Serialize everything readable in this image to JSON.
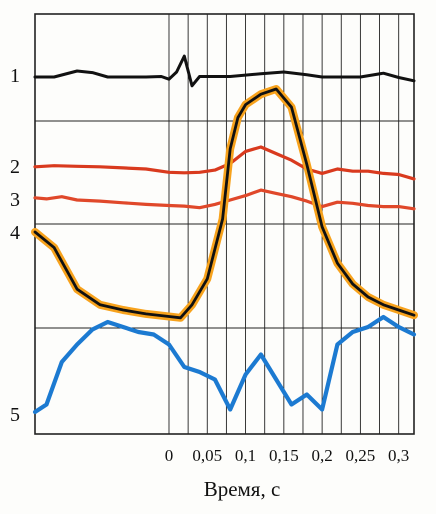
{
  "chart_data": {
    "type": "line",
    "xlabel": "Время, с",
    "xlim": [
      -0.175,
      0.32
    ],
    "x_ticks": [
      0,
      0.05,
      0.1,
      0.15,
      0.2,
      0.25,
      0.3
    ],
    "x_tick_labels": [
      "0",
      "0,05",
      "0,1",
      "0,15",
      "0,2",
      "0,25",
      "0,3"
    ],
    "grid": true,
    "row_labels": [
      "1",
      "2",
      "3",
      "4",
      "5"
    ],
    "colors": {
      "trace_1": "#111111",
      "trace_2": "#d93a1e",
      "trace_3": "#e0482a",
      "trace_4_highlight": "#f7a21c",
      "trace_4": "#111111",
      "trace_5": "#1c7ad1",
      "grid": "#222222"
    },
    "series": [
      {
        "name": "1",
        "x": [
          -0.175,
          -0.15,
          -0.12,
          -0.1,
          -0.08,
          -0.05,
          -0.03,
          -0.01,
          0.0,
          0.01,
          0.02,
          0.03,
          0.04,
          0.05,
          0.08,
          0.12,
          0.15,
          0.18,
          0.2,
          0.22,
          0.25,
          0.28,
          0.3,
          0.32
        ],
        "y": [
          0.0,
          0.0,
          0.55,
          0.4,
          0.0,
          0.0,
          0.0,
          0.05,
          -0.2,
          0.45,
          1.9,
          -0.8,
          0.05,
          0.05,
          0.05,
          0.3,
          0.45,
          0.2,
          0.0,
          0.0,
          0.0,
          0.35,
          -0.05,
          -0.35
        ]
      },
      {
        "name": "2",
        "x": [
          -0.175,
          -0.15,
          -0.12,
          -0.09,
          -0.06,
          -0.03,
          0.0,
          0.02,
          0.04,
          0.06,
          0.08,
          0.1,
          0.12,
          0.14,
          0.16,
          0.18,
          0.2,
          0.22,
          0.24,
          0.26,
          0.28,
          0.3,
          0.32
        ],
        "y": [
          0.2,
          0.3,
          0.25,
          0.2,
          0.1,
          0.0,
          -0.3,
          -0.35,
          -0.3,
          -0.1,
          0.5,
          1.6,
          2.0,
          1.4,
          0.8,
          0.0,
          -0.4,
          0.0,
          -0.2,
          -0.2,
          -0.4,
          -0.5,
          -0.9
        ]
      },
      {
        "name": "3",
        "x": [
          -0.175,
          -0.16,
          -0.14,
          -0.12,
          -0.09,
          -0.06,
          -0.03,
          0.0,
          0.02,
          0.04,
          0.06,
          0.08,
          0.1,
          0.12,
          0.14,
          0.16,
          0.18,
          0.2,
          0.22,
          0.24,
          0.26,
          0.28,
          0.3,
          0.32
        ],
        "y": [
          0.2,
          0.1,
          0.3,
          0.0,
          -0.1,
          -0.25,
          -0.4,
          -0.5,
          -0.55,
          -0.7,
          -0.4,
          0.0,
          0.4,
          0.9,
          0.6,
          0.3,
          -0.1,
          -0.6,
          -0.2,
          -0.3,
          -0.5,
          -0.6,
          -0.6,
          -0.8
        ]
      },
      {
        "name": "4",
        "x": [
          -0.175,
          -0.15,
          -0.12,
          -0.09,
          -0.06,
          -0.03,
          0.0,
          0.015,
          0.03,
          0.05,
          0.07,
          0.08,
          0.09,
          0.1,
          0.12,
          0.14,
          0.16,
          0.18,
          0.2,
          0.22,
          0.24,
          0.26,
          0.28,
          0.3,
          0.32
        ],
        "y": [
          0.0,
          -0.6,
          -2.2,
          -2.8,
          -3.0,
          -3.15,
          -3.25,
          -3.3,
          -2.8,
          -1.8,
          0.5,
          3.2,
          4.4,
          4.9,
          5.3,
          5.5,
          4.8,
          2.6,
          0.2,
          -1.2,
          -2.0,
          -2.5,
          -2.8,
          -3.0,
          -3.2
        ]
      },
      {
        "name": "5",
        "x": [
          -0.175,
          -0.16,
          -0.14,
          -0.12,
          -0.1,
          -0.08,
          -0.06,
          -0.04,
          -0.02,
          0.0,
          0.02,
          0.04,
          0.06,
          0.08,
          0.1,
          0.12,
          0.14,
          0.16,
          0.18,
          0.2,
          0.22,
          0.24,
          0.26,
          0.28,
          0.3,
          0.32
        ],
        "y": [
          0.0,
          0.3,
          2.0,
          2.7,
          3.3,
          3.6,
          3.4,
          3.2,
          3.1,
          2.7,
          1.8,
          1.6,
          1.3,
          0.1,
          1.5,
          2.3,
          1.3,
          0.3,
          0.7,
          0.1,
          2.7,
          3.2,
          3.4,
          3.8,
          3.4,
          3.1
        ]
      }
    ]
  }
}
